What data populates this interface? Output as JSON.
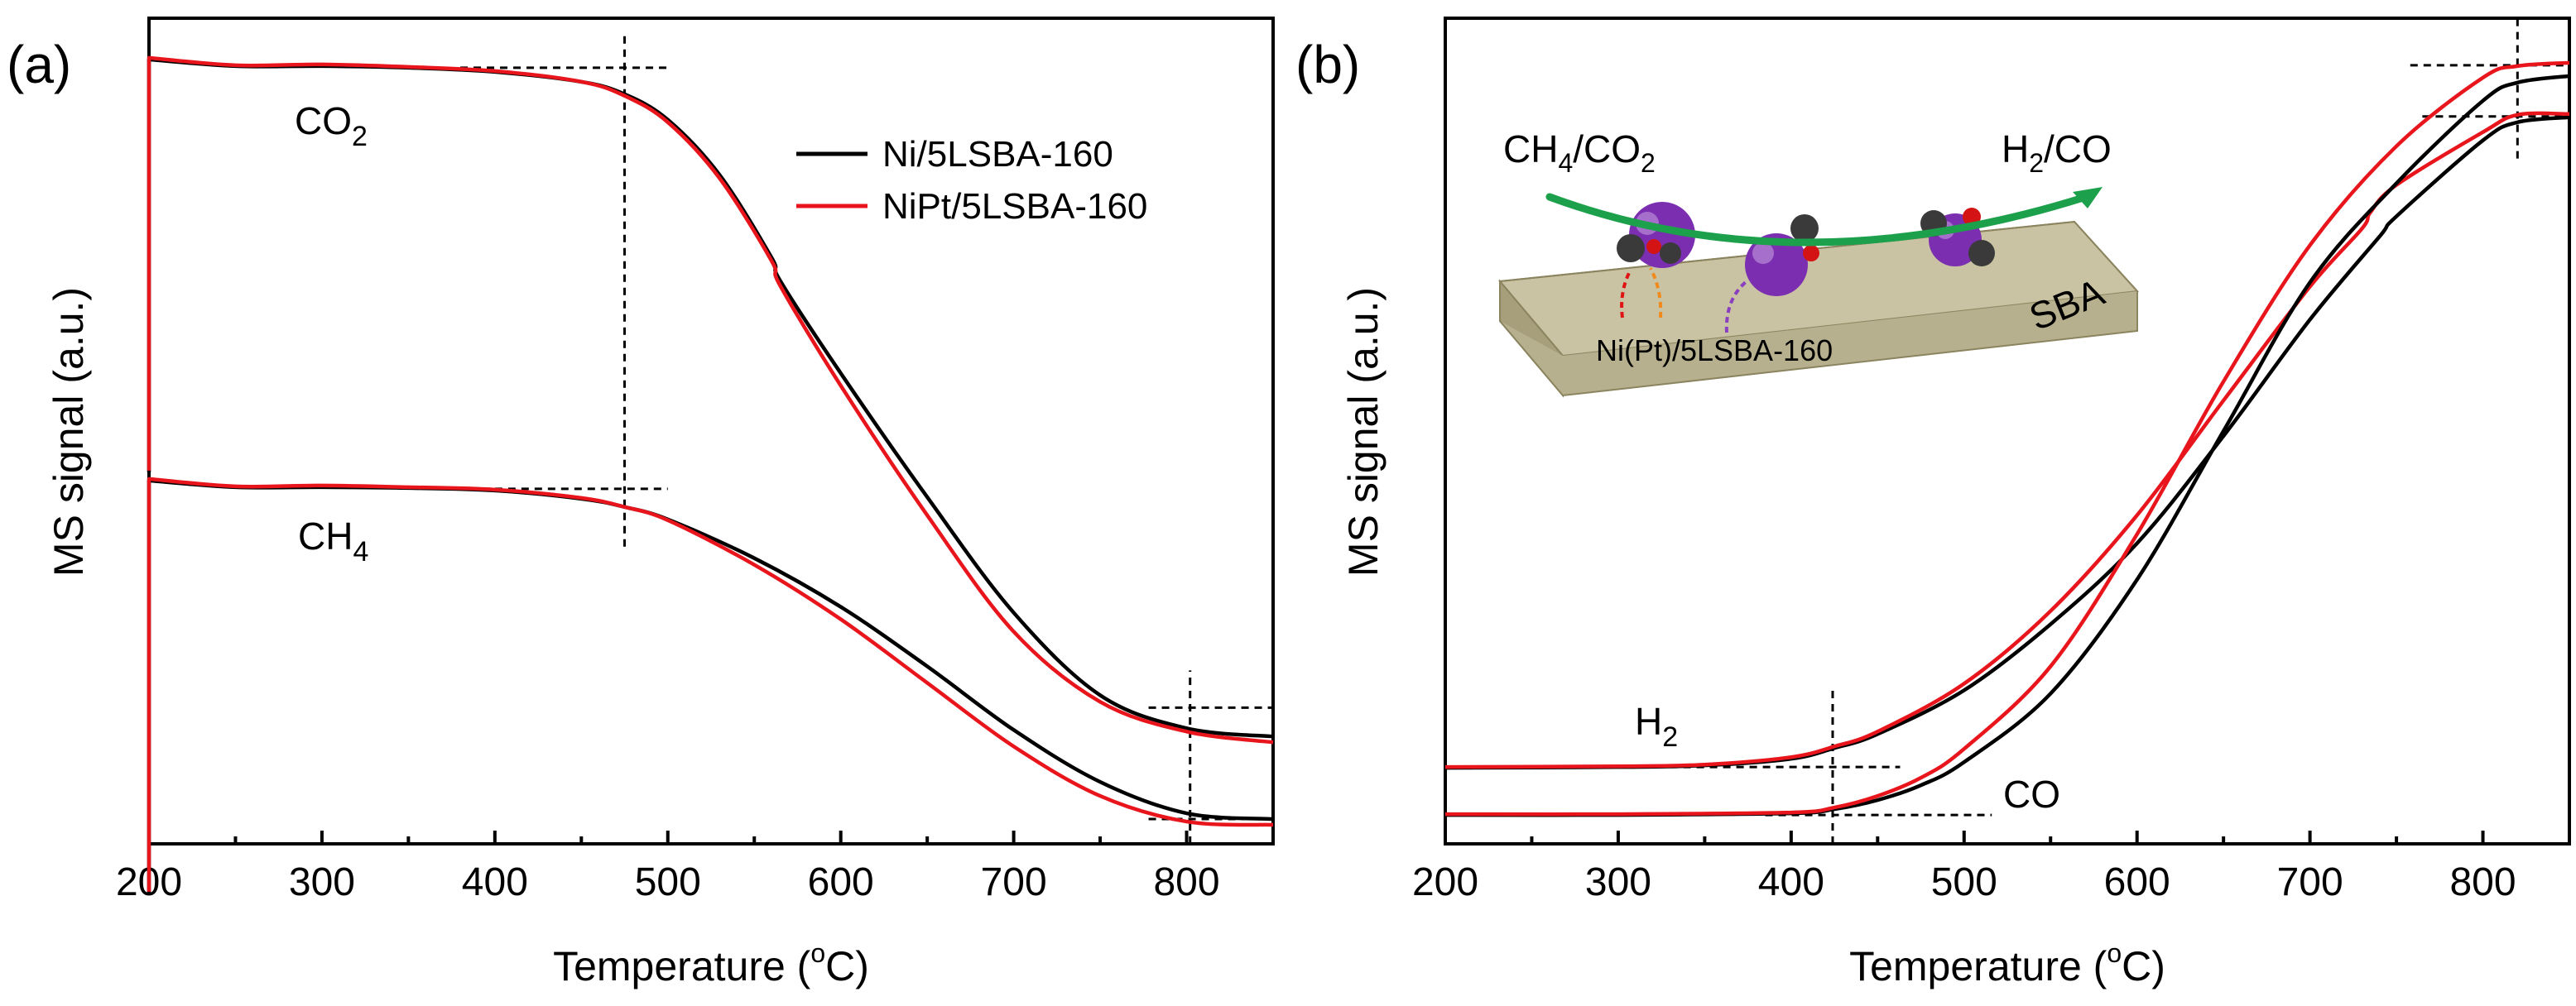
{
  "colors": {
    "black_series": "#000000",
    "red_series": "#e8161c",
    "arrow": "#1ca04b",
    "slab_top": "#c9c3a4",
    "slab_side": "#a79f7b",
    "atom_purple": "#7b2fb0",
    "atom_red": "#d41414",
    "atom_gray": "#3a3a3a"
  },
  "chart_data": [
    {
      "type": "line",
      "panel_label": "(a)",
      "xlabel_main": "Temperature (",
      "xlabel_sup": "o",
      "xlabel_tail": "C)",
      "ylabel": "MS signal (a.u.)",
      "xlim": [
        200,
        850
      ],
      "ylim": [
        0,
        100
      ],
      "xticks": [
        200,
        300,
        400,
        500,
        600,
        700,
        800
      ],
      "xtick_labels": [
        "200",
        "300",
        "400",
        "500",
        "600",
        "700",
        "800"
      ],
      "legend": [
        "Ni/5LSBA-160",
        "NiPt/5LSBA-160"
      ],
      "annotations": [
        {
          "main": "CO",
          "sub": "2"
        },
        {
          "main": "CH",
          "sub": "4"
        }
      ],
      "series": [
        {
          "name": "Ni/5LSBA-160 CO2",
          "color": "black",
          "x": [
            200,
            250,
            300,
            350,
            400,
            450,
            475,
            500,
            530,
            560,
            565,
            600,
            650,
            700,
            750,
            800,
            850
          ],
          "y": [
            95,
            94.2,
            94.2,
            94,
            93.5,
            92.3,
            90.8,
            87.7,
            81,
            71,
            68.2,
            57,
            42,
            28,
            18,
            14,
            13
          ]
        },
        {
          "name": "NiPt/5LSBA-160 CO2",
          "color": "red",
          "x": [
            200,
            250,
            300,
            350,
            400,
            450,
            475,
            500,
            530,
            560,
            565,
            600,
            650,
            700,
            750,
            800,
            850
          ],
          "y": [
            95.2,
            94.3,
            94.4,
            94.1,
            93.6,
            92.3,
            90.6,
            87.4,
            80.6,
            70.6,
            67.6,
            55.5,
            39.8,
            25.7,
            17.2,
            13.6,
            12.3
          ]
        },
        {
          "name": "Ni/5LSBA-160 CH4",
          "color": "black",
          "x": [
            200,
            250,
            300,
            350,
            400,
            450,
            475,
            500,
            550,
            600,
            650,
            700,
            750,
            800,
            850
          ],
          "y": [
            44,
            43.2,
            43.2,
            43.1,
            42.8,
            41.8,
            40.8,
            39.3,
            34.6,
            28.7,
            21.5,
            13.8,
            7.5,
            3.7,
            3
          ]
        },
        {
          "name": "NiPt/5LSBA-160 CH4",
          "color": "red",
          "x": [
            200,
            250,
            300,
            350,
            400,
            450,
            475,
            500,
            550,
            600,
            650,
            700,
            750,
            800,
            850
          ],
          "y": [
            44.2,
            43.3,
            43.4,
            43.2,
            42.9,
            41.9,
            40.8,
            39.2,
            33.8,
            27.2,
            19.5,
            11.8,
            5.8,
            2.7,
            2.3
          ]
        }
      ],
      "guide_points": {
        "v_line_x": 475,
        "v_line_y": [
          36,
          98
        ],
        "co2_h_y": 94,
        "co2_h_x": [
          380,
          500
        ],
        "ch4_h_y": 43,
        "ch4_h_x": [
          400,
          500
        ],
        "v2_line_x": 802,
        "v2_line_y": [
          0,
          21
        ],
        "h2_y": 16.5,
        "h2_x": [
          778,
          850
        ],
        "h3_y": 3,
        "h3_x": [
          778,
          850
        ]
      }
    },
    {
      "type": "line",
      "panel_label": "(b)",
      "xlabel_main": "Temperature (",
      "xlabel_sup": "o",
      "xlabel_tail": "C)",
      "ylabel": "MS signal (a.u.)",
      "xlim": [
        200,
        850
      ],
      "ylim": [
        0,
        100
      ],
      "xticks": [
        200,
        300,
        400,
        500,
        600,
        700,
        800
      ],
      "xtick_labels": [
        "200",
        "300",
        "400",
        "500",
        "600",
        "700",
        "800"
      ],
      "annotations": [
        {
          "main": "H",
          "sub": "2"
        },
        {
          "main": "CO",
          "sub": ""
        }
      ],
      "series": [
        {
          "name": "H2 black",
          "color": "black",
          "x": [
            200,
            300,
            350,
            400,
            425,
            450,
            500,
            550,
            600,
            650,
            700,
            740,
            750,
            800,
            820,
            850
          ],
          "y": [
            9.2,
            9.3,
            9.5,
            10.3,
            11.6,
            13.3,
            18.6,
            26.6,
            36.4,
            49.4,
            63.5,
            73.5,
            76,
            85.2,
            87.4,
            88
          ]
        },
        {
          "name": "H2 red",
          "color": "red",
          "x": [
            200,
            300,
            350,
            400,
            425,
            450,
            500,
            550,
            600,
            650,
            700,
            730,
            735,
            750,
            800,
            820,
            850
          ],
          "y": [
            9.3,
            9.4,
            9.6,
            10.5,
            11.8,
            13.6,
            19.4,
            28.2,
            39.8,
            53.7,
            67.5,
            74.5,
            76.5,
            79.8,
            86.2,
            88.3,
            88.4
          ]
        },
        {
          "name": "CO black",
          "color": "black",
          "x": [
            200,
            300,
            400,
            425,
            450,
            475,
            500,
            550,
            600,
            650,
            700,
            750,
            800,
            820,
            850
          ],
          "y": [
            3.5,
            3.5,
            3.7,
            4.2,
            5.3,
            7.1,
            9.9,
            18.2,
            32,
            50,
            68,
            80,
            90,
            92.2,
            93
          ]
        },
        {
          "name": "CO red",
          "color": "red",
          "x": [
            200,
            300,
            400,
            425,
            450,
            475,
            500,
            550,
            600,
            650,
            700,
            750,
            800,
            820,
            850
          ],
          "y": [
            3.6,
            3.6,
            3.8,
            4.4,
            5.8,
            8,
            11.5,
            21.5,
            37.5,
            56,
            72.5,
            84.5,
            92.8,
            94.2,
            94.6
          ]
        }
      ],
      "guide_points": {
        "v_line_x": 424,
        "v_line_y": [
          0,
          19
        ],
        "h2_h_y": 9.3,
        "h2_h_x": [
          330,
          463
        ],
        "co_h_y": 3.5,
        "co_h_x": [
          385,
          516
        ],
        "v2_line_x": 820,
        "v2_line_y": [
          83,
          100
        ],
        "top_h1_y": 94.3,
        "top_h1_x": [
          758,
          850
        ],
        "top_h2_y": 88.1,
        "top_h2_x": [
          765,
          850
        ]
      },
      "inset": {
        "reactants_main": "CH",
        "reactants_sub": "4",
        "reactants_tail": "/CO",
        "reactants_sub2": "2",
        "products_main": "H",
        "products_sub": "2",
        "products_tail": "/CO",
        "slab_label": "SBA",
        "catalyst_label": "Ni(Pt)/5LSBA-160"
      }
    }
  ]
}
